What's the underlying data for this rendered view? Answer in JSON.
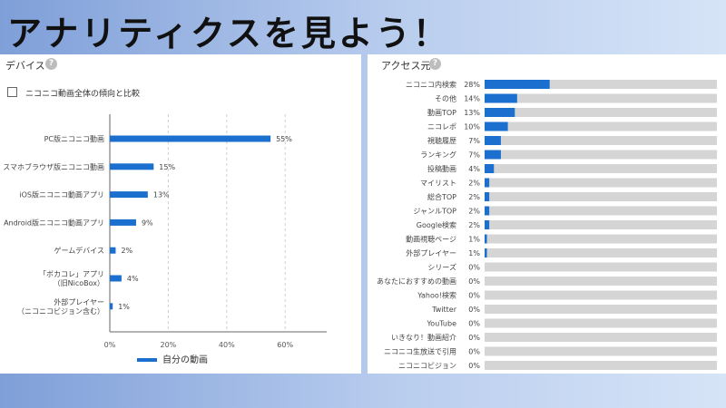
{
  "page": {
    "title": "アナリティクスを見よう！"
  },
  "device_panel": {
    "title": "デバイス",
    "compare_checkbox_label": "ニコニコ動画全体の傾向と比較",
    "compare_checked": false
  },
  "access_panel": {
    "title": "アクセス元"
  },
  "chart_data": [
    {
      "type": "bar",
      "orientation": "horizontal",
      "categories": [
        "PC版ニコニコ動画",
        "スマホブラウザ版ニコニコ動画",
        "iOS版ニコニコ動画アプリ",
        "Android版ニコニコ動画アプリ",
        "ゲームデバイス",
        [
          "「ボカコレ」アプリ",
          "（旧NicoBox）"
        ],
        [
          "外部プレイヤー",
          "（ニコニコビジョン含む）"
        ]
      ],
      "values": [
        55,
        15,
        13,
        9,
        2,
        4,
        1
      ],
      "value_labels": [
        "55%",
        "15%",
        "13%",
        "9%",
        "2%",
        "4%",
        "1%"
      ],
      "series": [
        {
          "name": "自分の動画",
          "values": [
            55,
            15,
            13,
            9,
            2,
            4,
            1
          ]
        }
      ],
      "xlim": [
        0,
        75
      ],
      "xticks": [
        0,
        20,
        40,
        60
      ],
      "xtick_labels": [
        "0%",
        "20%",
        "40%",
        "60%"
      ],
      "grid": true,
      "legend": "bottom",
      "color": "#1a6fcf"
    },
    {
      "type": "bar",
      "orientation": "horizontal",
      "categories": [
        "ニコニコ内検索",
        "その他",
        "動画TOP",
        "ニコレポ",
        "視聴履歴",
        "ランキング",
        "投稿動画",
        "マイリスト",
        "総合TOP",
        "ジャンルTOP",
        "Google検索",
        "動画視聴ページ",
        "外部プレイヤー",
        "シリーズ",
        "あなたにおすすめの動画",
        "Yahoo!検索",
        "Twitter",
        "YouTube",
        "いきなり！動画紹介",
        "ニコニコ生放送で引用",
        "ニコニコビジョン"
      ],
      "values": [
        28,
        14,
        13,
        10,
        7,
        7,
        4,
        2,
        2,
        2,
        2,
        1,
        1,
        0,
        0,
        0,
        0,
        0,
        0,
        0,
        0
      ],
      "value_labels": [
        "28%",
        "14%",
        "13%",
        "10%",
        "7%",
        "7%",
        "4%",
        "2%",
        "2%",
        "2%",
        "2%",
        "1%",
        "1%",
        "0%",
        "0%",
        "0%",
        "0%",
        "0%",
        "0%",
        "0%",
        "0%"
      ],
      "xlim": [
        0,
        100
      ],
      "color": "#1a6fcf",
      "track_color": "#d5d5d5"
    }
  ]
}
